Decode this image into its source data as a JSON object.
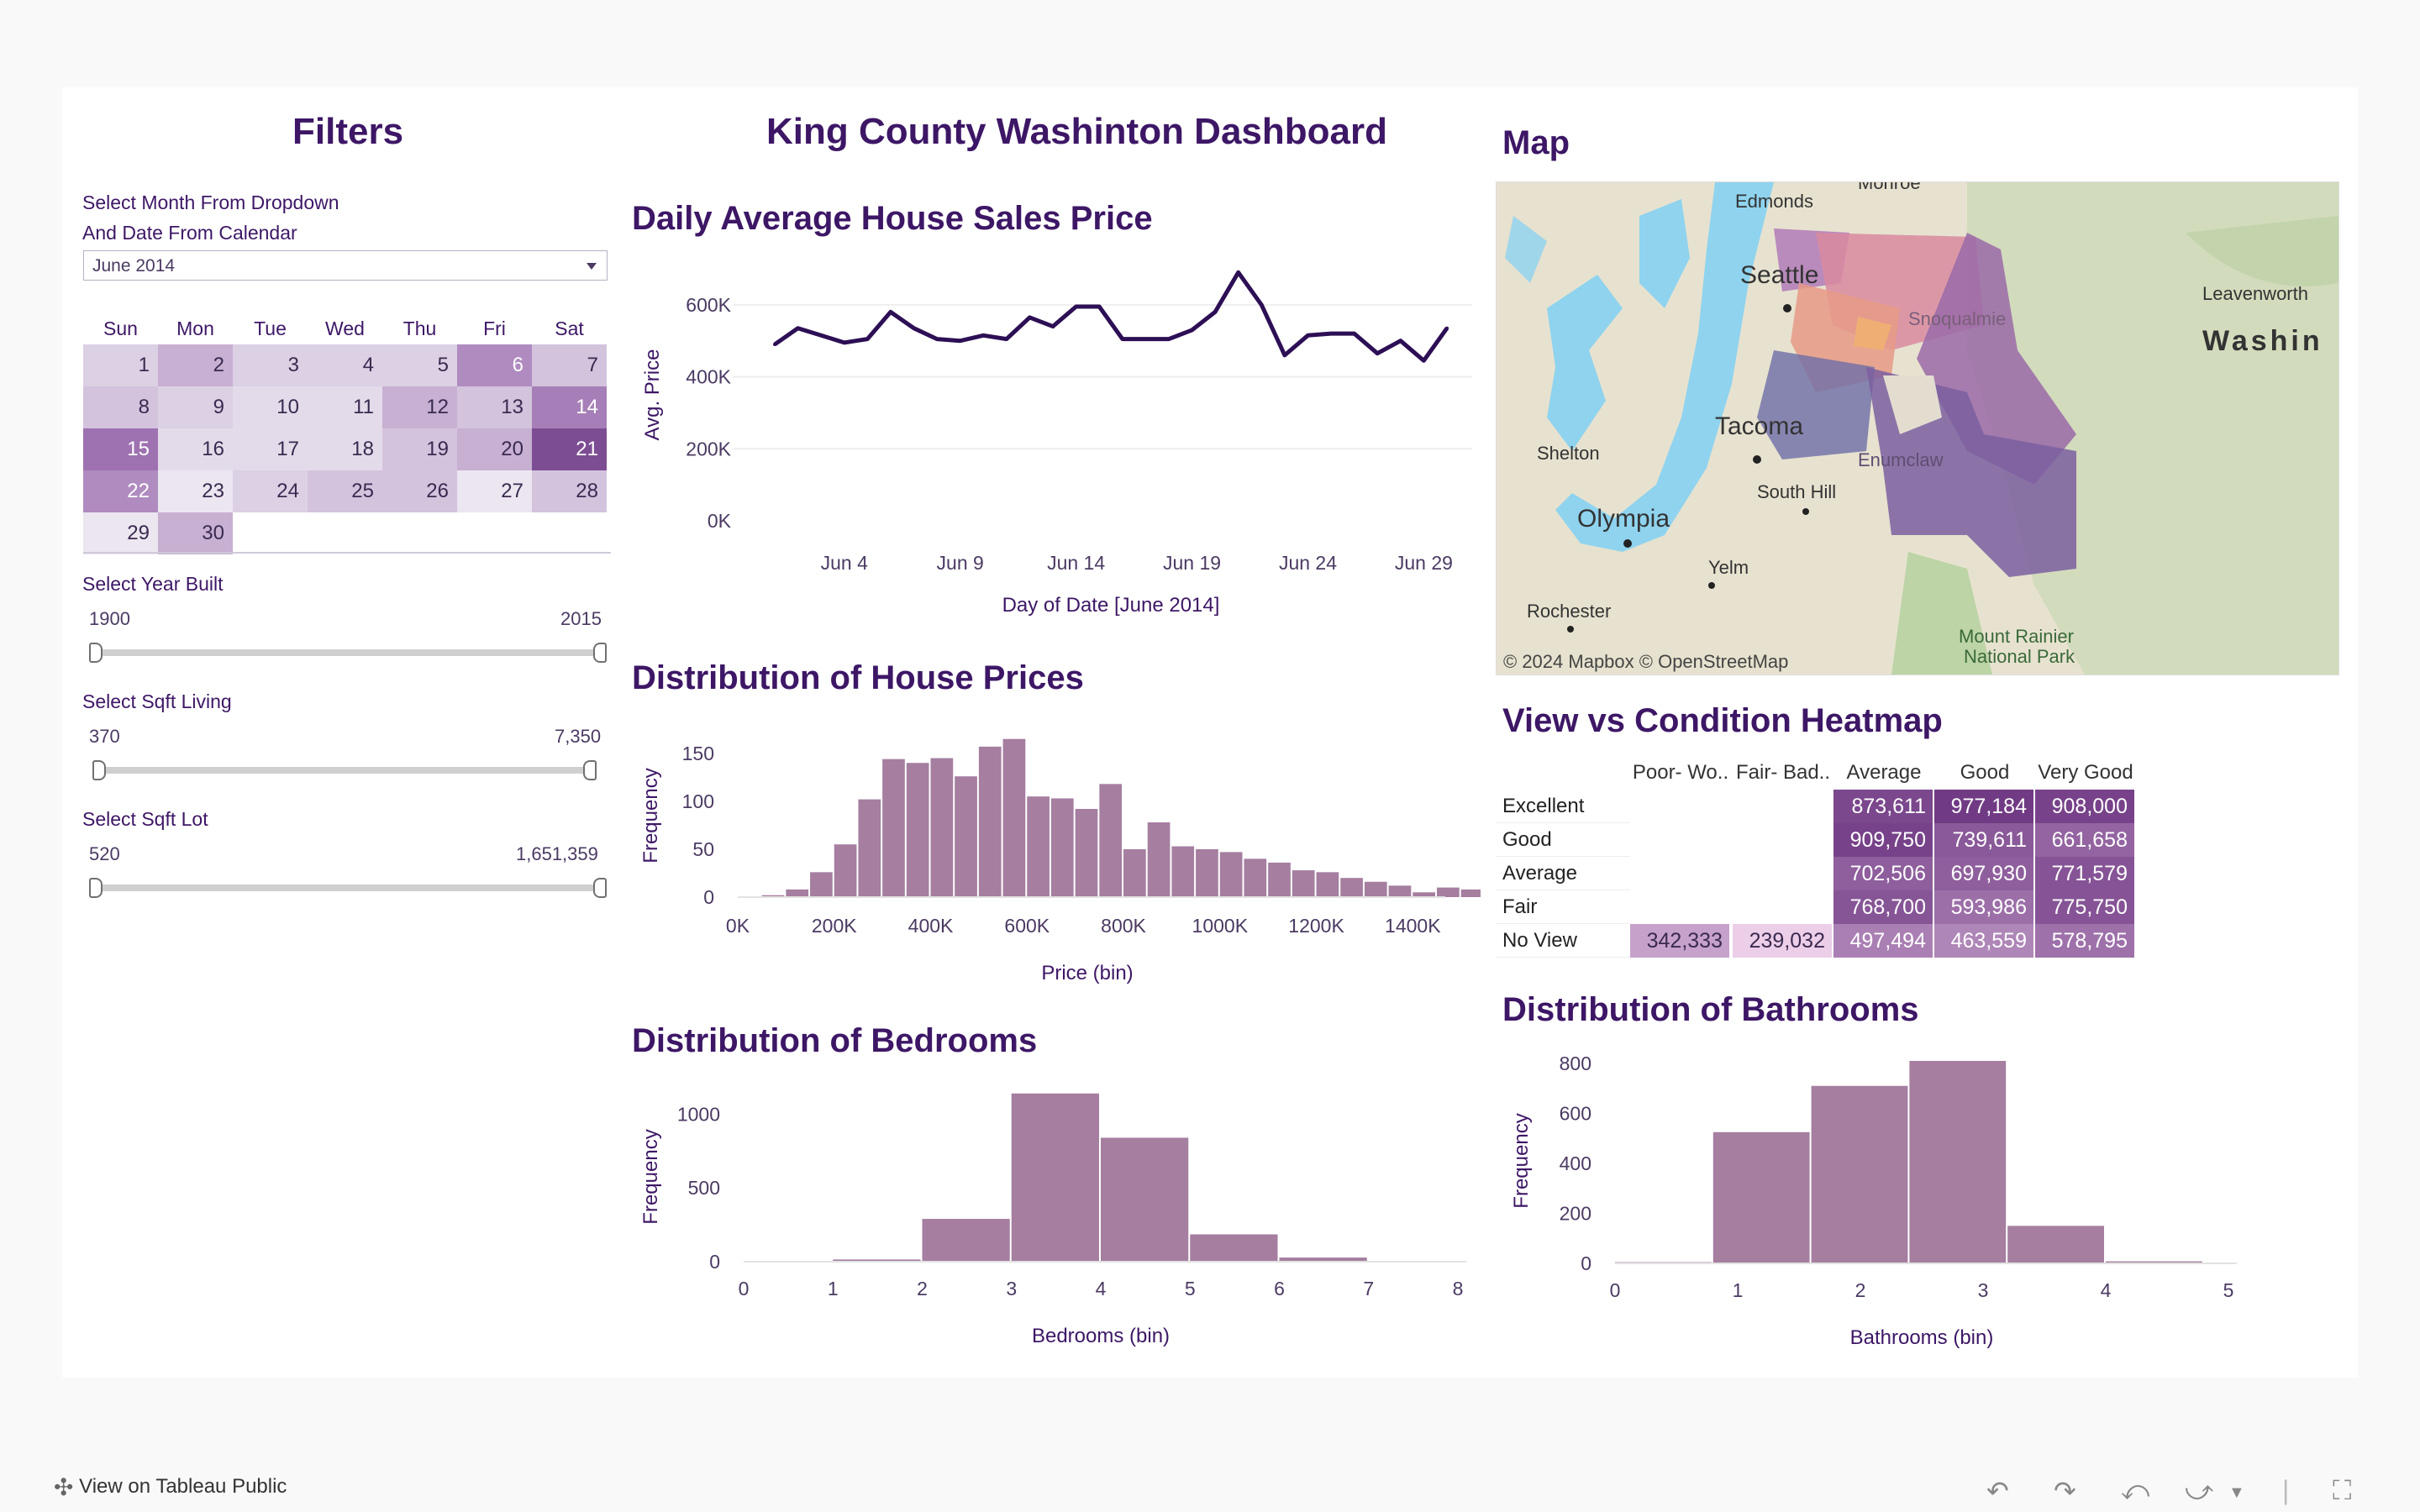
{
  "dashboard_title": "King County Washinton Dashboard",
  "filters": {
    "title": "Filters",
    "month_label_1": "Select Month From Dropdown",
    "month_label_2": "And Date From Calendar",
    "month_value": "June 2014",
    "weekdays": [
      "Sun",
      "Mon",
      "Tue",
      "Wed",
      "Thu",
      "Fri",
      "Sat"
    ],
    "calendar": [
      {
        "day": "1",
        "shade": "#dcd0e4"
      },
      {
        "day": "2",
        "shade": "#c7b0d2"
      },
      {
        "day": "3",
        "shade": "#dcd0e4"
      },
      {
        "day": "4",
        "shade": "#dcd0e4"
      },
      {
        "day": "5",
        "shade": "#dcd0e4"
      },
      {
        "day": "6",
        "shade": "#b08bc0",
        "light": true
      },
      {
        "day": "7",
        "shade": "#d3c3dd"
      },
      {
        "day": "8",
        "shade": "#d3c3dd"
      },
      {
        "day": "9",
        "shade": "#dcd0e4"
      },
      {
        "day": "10",
        "shade": "#e4dbea"
      },
      {
        "day": "11",
        "shade": "#e4dbea"
      },
      {
        "day": "12",
        "shade": "#c7b0d2"
      },
      {
        "day": "13",
        "shade": "#d3c3dd"
      },
      {
        "day": "14",
        "shade": "#a77fb8",
        "light": true
      },
      {
        "day": "15",
        "shade": "#9e72b1",
        "light": true
      },
      {
        "day": "16",
        "shade": "#e4dbea"
      },
      {
        "day": "17",
        "shade": "#e4dbea"
      },
      {
        "day": "18",
        "shade": "#e4dbea"
      },
      {
        "day": "19",
        "shade": "#d3c3dd"
      },
      {
        "day": "20",
        "shade": "#c7b0d2"
      },
      {
        "day": "21",
        "shade": "#7d4d93",
        "light": true
      },
      {
        "day": "22",
        "shade": "#b08bc0",
        "light": true
      },
      {
        "day": "23",
        "shade": "#ece6f0"
      },
      {
        "day": "24",
        "shade": "#dcd0e4"
      },
      {
        "day": "25",
        "shade": "#d3c3dd"
      },
      {
        "day": "26",
        "shade": "#d3c3dd"
      },
      {
        "day": "27",
        "shade": "#ece6f0"
      },
      {
        "day": "28",
        "shade": "#d3c3dd"
      },
      {
        "day": "29",
        "shade": "#ece6f0"
      },
      {
        "day": "30",
        "shade": "#c7b0d2"
      }
    ],
    "year_built": {
      "label": "Select Year Built",
      "min": "1900",
      "max": "2015"
    },
    "sqft_living": {
      "label": "Select Sqft Living",
      "min": "370",
      "max": "7,350"
    },
    "sqft_lot": {
      "label": "Select Sqft Lot",
      "min": "520",
      "max": "1,651,359"
    }
  },
  "line_chart": {
    "title": "Daily Average  House Sales Price",
    "ylabel": "Avg. Price",
    "xlabel": "Day of Date [June 2014]",
    "yticks": [
      "0K",
      "200K",
      "400K",
      "600K"
    ],
    "xticks": [
      "Jun 4",
      "Jun 9",
      "Jun 14",
      "Jun 19",
      "Jun 24",
      "Jun 29"
    ]
  },
  "price_hist": {
    "title": "Distribution of House Prices",
    "ylabel": "Frequency",
    "xlabel": "Price (bin)",
    "yticks": [
      "0",
      "50",
      "100",
      "150"
    ],
    "xticks": [
      "0K",
      "200K",
      "400K",
      "600K",
      "800K",
      "1000K",
      "1200K",
      "1400K"
    ]
  },
  "bed_hist": {
    "title": "Distribution of Bedrooms",
    "ylabel": "Frequency",
    "xlabel": "Bedrooms (bin)",
    "yticks": [
      "0",
      "500",
      "1000"
    ],
    "xticks": [
      "0",
      "1",
      "2",
      "3",
      "4",
      "5",
      "6",
      "7",
      "8"
    ]
  },
  "bath_hist": {
    "title": "Distribution of Bathrooms",
    "ylabel": "Frequency",
    "xlabel": "Bathrooms (bin)",
    "yticks": [
      "0",
      "200",
      "400",
      "600",
      "800"
    ],
    "xticks": [
      "0",
      "1",
      "2",
      "3",
      "4",
      "5"
    ]
  },
  "map": {
    "title": "Map",
    "attribution": "© 2024 Mapbox  © OpenStreetMap",
    "places": [
      "Edmonds",
      "Monroe",
      "Seattle",
      "Snoqualmie",
      "Leavenworth",
      "Washin",
      "Tacoma",
      "Shelton",
      "Enumclaw",
      "South Hill",
      "Olympia",
      "Yelm",
      "Rochester",
      "Mount Rainier",
      "National Park"
    ]
  },
  "heatmap": {
    "title": "View vs Condition Heatmap",
    "columns": [
      "Poor- Wo..",
      "Fair- Bad..",
      "Average",
      "Good",
      "Very Good"
    ],
    "rows": [
      {
        "label": "Excellent",
        "values": [
          "",
          "",
          "873,611",
          "977,184",
          "908,000"
        ]
      },
      {
        "label": "Good",
        "values": [
          "",
          "",
          "909,750",
          "739,611",
          "661,658"
        ]
      },
      {
        "label": "Average",
        "values": [
          "",
          "",
          "702,506",
          "697,930",
          "771,579"
        ]
      },
      {
        "label": "Fair",
        "values": [
          "",
          "",
          "768,700",
          "593,986",
          "775,750"
        ]
      },
      {
        "label": "No View",
        "values": [
          "342,333",
          "239,032",
          "497,494",
          "463,559",
          "578,795"
        ]
      }
    ]
  },
  "footer": {
    "view_label": "View on Tableau Public"
  },
  "chart_data": [
    {
      "type": "line",
      "title": "Daily Average  House Sales Price",
      "xlabel": "Day of Date [June 2014]",
      "ylabel": "Avg. Price",
      "x": [
        "Jun 1",
        "Jun 2",
        "Jun 3",
        "Jun 4",
        "Jun 5",
        "Jun 6",
        "Jun 7",
        "Jun 8",
        "Jun 9",
        "Jun 10",
        "Jun 11",
        "Jun 12",
        "Jun 13",
        "Jun 14",
        "Jun 15",
        "Jun 16",
        "Jun 17",
        "Jun 18",
        "Jun 19",
        "Jun 20",
        "Jun 21",
        "Jun 22",
        "Jun 23",
        "Jun 24",
        "Jun 25",
        "Jun 26",
        "Jun 27",
        "Jun 28",
        "Jun 29",
        "Jun 30"
      ],
      "values": [
        490000,
        535000,
        515000,
        495000,
        505000,
        580000,
        535000,
        505000,
        500000,
        515000,
        505000,
        565000,
        540000,
        595000,
        595000,
        505000,
        505000,
        505000,
        530000,
        580000,
        690000,
        600000,
        460000,
        515000,
        520000,
        520000,
        465000,
        500000,
        445000,
        535000
      ],
      "ylim": [
        0,
        700000
      ]
    },
    {
      "type": "bar",
      "title": "Distribution of House Prices",
      "xlabel": "Price (bin)",
      "ylabel": "Frequency",
      "bin_start": 50000,
      "bin_width": 50000,
      "values": [
        2,
        8,
        26,
        55,
        102,
        144,
        140,
        145,
        126,
        157,
        165,
        105,
        103,
        92,
        118,
        50,
        78,
        53,
        50,
        47,
        40,
        36,
        28,
        26,
        20,
        16,
        12,
        5,
        10,
        8,
        9,
        7,
        6,
        8,
        8,
        7,
        4,
        5
      ],
      "xlim": [
        0,
        1450000
      ],
      "ylim": [
        0,
        170
      ]
    },
    {
      "type": "bar",
      "title": "Distribution of Bedrooms",
      "xlabel": "Bedrooms (bin)",
      "ylabel": "Frequency",
      "bins": [
        [
          1,
          2
        ],
        [
          2,
          3
        ],
        [
          3,
          4
        ],
        [
          4,
          5
        ],
        [
          5,
          6
        ],
        [
          6,
          7
        ]
      ],
      "values": [
        15,
        290,
        1140,
        840,
        185,
        28
      ],
      "xlim": [
        0,
        8
      ],
      "ylim": [
        0,
        1150
      ]
    },
    {
      "type": "bar",
      "title": "Distribution of Bathrooms",
      "xlabel": "Bathrooms (bin)",
      "ylabel": "Frequency",
      "bins": [
        [
          0,
          0.8
        ],
        [
          0.8,
          1.6
        ],
        [
          1.6,
          2.4
        ],
        [
          2.4,
          3.2
        ],
        [
          3.2,
          4
        ],
        [
          4,
          4.8
        ]
      ],
      "values": [
        5,
        525,
        710,
        810,
        150,
        8
      ],
      "xlim": [
        0,
        5
      ],
      "ylim": [
        0,
        820
      ]
    }
  ]
}
